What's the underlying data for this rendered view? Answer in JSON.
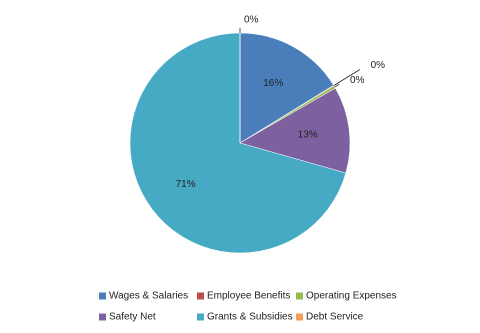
{
  "chart_data": {
    "type": "pie",
    "categories": [
      "Wages & Salaries",
      "Employee Benefits",
      "Operating Expenses",
      "Safety Net",
      "Grants & Subsidies",
      "Debt Service"
    ],
    "values": [
      16.2,
      0.1,
      0.4,
      12.7,
      70.6,
      0.0
    ],
    "value_labels": [
      "16%",
      "0%",
      "0%",
      "13%",
      "71%",
      "0%"
    ],
    "colors": [
      "#4a7ebb",
      "#be4b48",
      "#98b954",
      "#7d60a0",
      "#46aac4",
      "#f59d56"
    ],
    "legend": "bottom"
  }
}
